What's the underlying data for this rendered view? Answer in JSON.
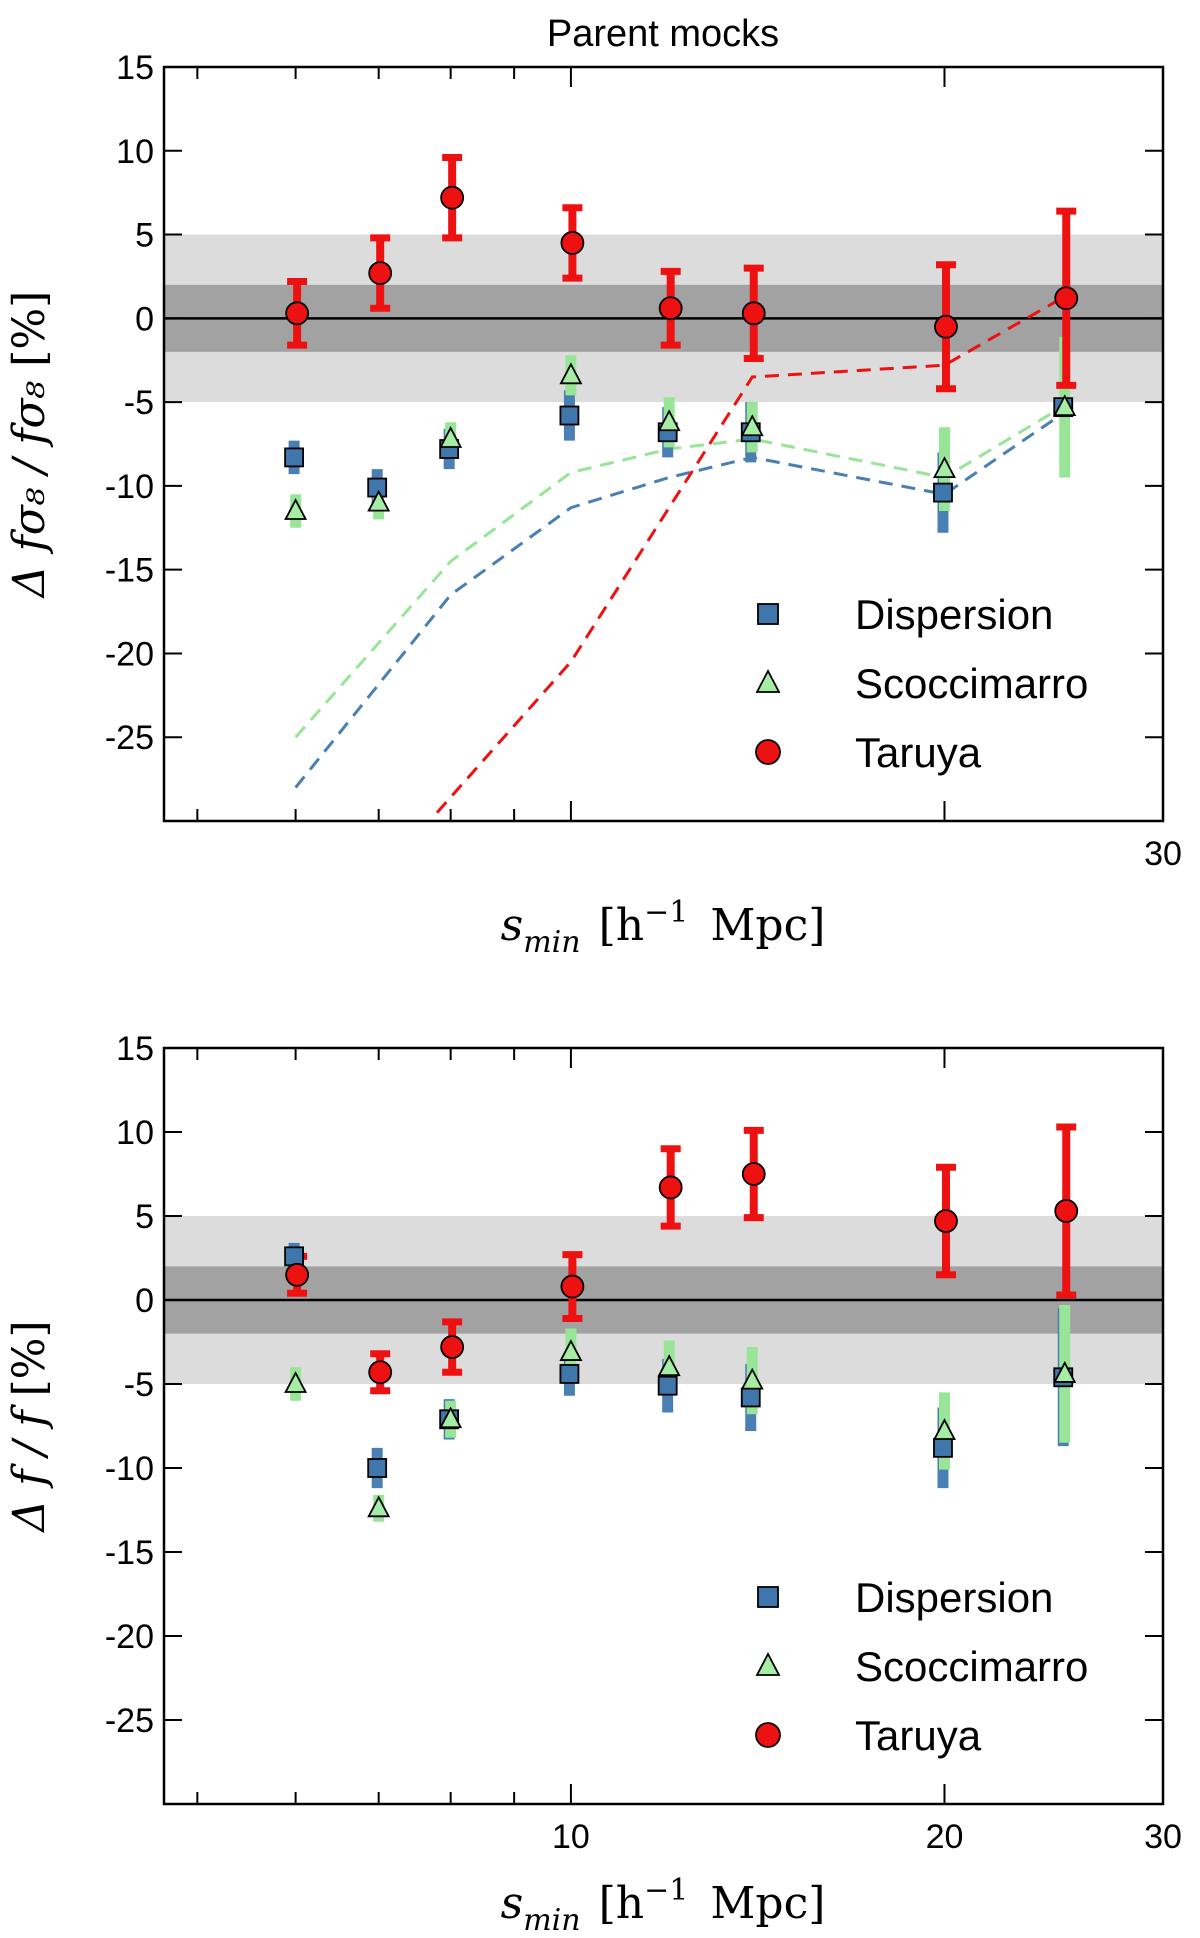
{
  "figure_title": "Parent mocks",
  "colors": {
    "dispersion": "#4a7fb3",
    "scoccimarro": "#98e598",
    "taruya": "#ee1111",
    "band_inner": "#a2a2a2",
    "band_outer": "#dcdcdc"
  },
  "legend": [
    "Dispersion",
    "Scoccimarro",
    "Taruya"
  ],
  "chart_data": [
    {
      "type": "scatter",
      "panel": "top",
      "title": "Parent mocks",
      "xscale": "log",
      "xlim": [
        4.7,
        30
      ],
      "ylim": [
        -30,
        15
      ],
      "yticks": [
        15,
        10,
        5,
        0,
        -5,
        -10,
        -15,
        -20,
        -25
      ],
      "ytick_labels": [
        "15",
        "10",
        "5",
        "0",
        "-5",
        "-10",
        "-15",
        "-20",
        "-25"
      ],
      "xticks_major": [
        10,
        20,
        30
      ],
      "xtick_labels": [
        "",
        "",
        "30"
      ],
      "xticks_minor": [
        5,
        6,
        7,
        8,
        9
      ],
      "xlabel": {
        "main": "s",
        "sub": "min",
        "post": "[h",
        "sup": "−1",
        "unit": "Mpc]"
      },
      "ylabel": {
        "main": "Δ fσ₈ / fσ₈",
        "unit": "[%]"
      },
      "bands": [
        {
          "range": [
            -5,
            5
          ],
          "shade": "light"
        },
        {
          "range": [
            -2,
            2
          ],
          "shade": "dark"
        }
      ],
      "x": [
        6,
        7,
        8,
        10,
        12,
        14,
        20,
        25
      ],
      "series": [
        {
          "name": "Dispersion",
          "marker": "square",
          "offset": -1,
          "values": [
            -8.3,
            -10.1,
            -7.8,
            -5.8,
            -6.8,
            -6.8,
            -10.4,
            -5.3
          ],
          "errors": [
            1.0,
            1.1,
            1.2,
            1.5,
            1.5,
            1.8,
            2.4,
            0.5
          ]
        },
        {
          "name": "Scoccimarro",
          "marker": "triangle",
          "offset": 0,
          "values": [
            -11.5,
            -11.0,
            -7.2,
            -3.4,
            -6.2,
            -6.5,
            -9.0,
            -5.3
          ],
          "errors": [
            1.0,
            1.0,
            1.0,
            1.2,
            1.5,
            1.5,
            2.5,
            4.2
          ]
        },
        {
          "name": "Taruya",
          "marker": "circle",
          "offset": 1,
          "values": [
            0.3,
            2.7,
            7.2,
            4.5,
            0.6,
            0.3,
            -0.5,
            1.2
          ],
          "errors": [
            1.9,
            2.1,
            2.4,
            2.1,
            2.2,
            2.7,
            3.7,
            5.2
          ]
        }
      ],
      "dashed_lines": [
        {
          "name": "Dispersion",
          "x": [
            6,
            8,
            10,
            12,
            14,
            20,
            25
          ],
          "y": [
            -28,
            -16.5,
            -11.3,
            -9.5,
            -8.3,
            -10.5,
            -5.6
          ]
        },
        {
          "name": "Scoccimarro",
          "x": [
            6,
            8,
            10,
            12,
            14,
            20,
            25
          ],
          "y": [
            -25,
            -14.5,
            -9.2,
            -7.8,
            -7.2,
            -9.5,
            -5.2
          ]
        },
        {
          "name": "Taruya",
          "x": [
            7.8,
            10,
            14,
            20,
            25
          ],
          "y": [
            -29.5,
            -20.5,
            -3.5,
            -2.8,
            1.3
          ]
        }
      ]
    },
    {
      "type": "scatter",
      "panel": "bottom",
      "title": "",
      "xscale": "log",
      "xlim": [
        4.7,
        30
      ],
      "ylim": [
        -30,
        15
      ],
      "yticks": [
        15,
        10,
        5,
        0,
        -5,
        -10,
        -15,
        -20,
        -25
      ],
      "ytick_labels": [
        "15",
        "10",
        "5",
        "0",
        "-5",
        "-10",
        "-15",
        "-20",
        "-25"
      ],
      "xticks_major": [
        10,
        20,
        30
      ],
      "xtick_labels": [
        "10",
        "20",
        "30"
      ],
      "xticks_minor": [
        5,
        6,
        7,
        8,
        9
      ],
      "xlabel": {
        "main": "s",
        "sub": "min",
        "post": "[h",
        "sup": "−1",
        "unit": "Mpc]"
      },
      "ylabel": {
        "main": "Δ f / f",
        "unit": "[%]"
      },
      "bands": [
        {
          "range": [
            -5,
            5
          ],
          "shade": "light"
        },
        {
          "range": [
            -2,
            2
          ],
          "shade": "dark"
        }
      ],
      "x": [
        6,
        7,
        8,
        10,
        12,
        14,
        20,
        25
      ],
      "series": [
        {
          "name": "Dispersion",
          "marker": "square",
          "offset": -1,
          "values": [
            2.6,
            -10.0,
            -7.1,
            -4.4,
            -5.1,
            -5.8,
            -8.8,
            -4.6
          ],
          "errors": [
            0.8,
            1.2,
            1.2,
            1.3,
            1.6,
            2.0,
            2.4,
            4.1
          ]
        },
        {
          "name": "Scoccimarro",
          "marker": "triangle",
          "offset": 0,
          "values": [
            -5.0,
            -12.4,
            -7.1,
            -3.1,
            -4.0,
            -4.8,
            -7.8,
            -4.4
          ],
          "errors": [
            1.0,
            0.8,
            1.1,
            1.4,
            1.6,
            2.0,
            2.3,
            4.1
          ]
        },
        {
          "name": "Taruya",
          "marker": "circle",
          "offset": 1,
          "values": [
            1.5,
            -4.3,
            -2.8,
            0.8,
            6.7,
            7.5,
            4.7,
            5.3
          ],
          "errors": [
            1.1,
            1.1,
            1.5,
            1.9,
            2.3,
            2.6,
            3.2,
            5.0
          ]
        }
      ],
      "dashed_lines": []
    }
  ]
}
